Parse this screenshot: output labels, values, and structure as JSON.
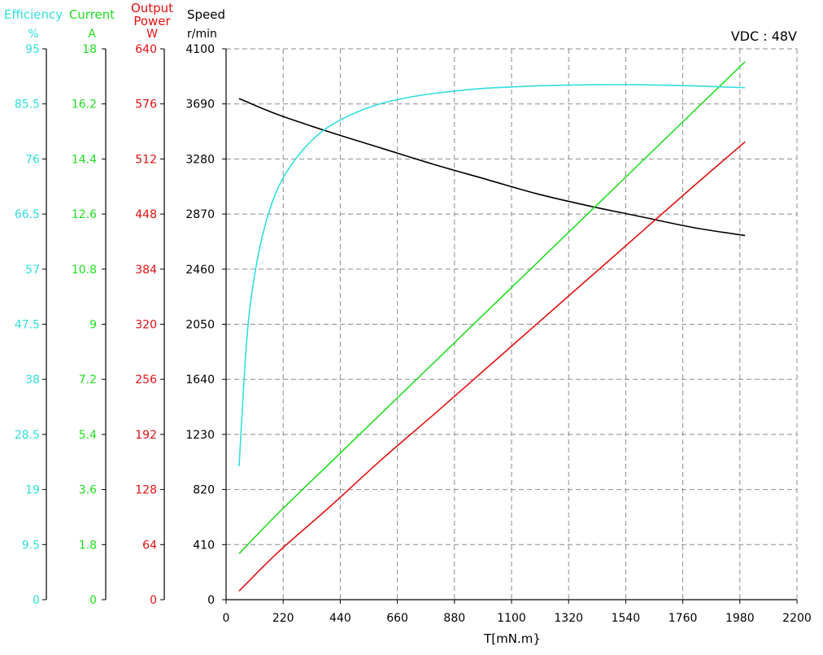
{
  "chart_data": {
    "type": "line",
    "x_axis": {
      "label": "T[mN.m}",
      "range": [
        0,
        2200
      ],
      "ticks": [
        0,
        220,
        440,
        660,
        880,
        1100,
        1320,
        1540,
        1760,
        1980,
        2200
      ]
    },
    "annotation": "VDC : 48V",
    "axes": [
      {
        "key": "speed",
        "title": "Speed",
        "unit": "r/min",
        "color": "#000000",
        "range": [
          0,
          4100
        ],
        "ticks": [
          "0",
          "410",
          "820",
          "1230",
          "1640",
          "2050",
          "2460",
          "2870",
          "3280",
          "3690",
          "4100"
        ]
      },
      {
        "key": "output_power",
        "title": "Output Power",
        "unit": "W",
        "color": "#e01010",
        "range": [
          0,
          640
        ],
        "ticks": [
          "0",
          "64",
          "128",
          "192",
          "256",
          "320",
          "384",
          "448",
          "512",
          "576",
          "640"
        ]
      },
      {
        "key": "current",
        "title": "Current",
        "unit": "A",
        "color": "#22dd22",
        "range": [
          0,
          18
        ],
        "ticks": [
          "0",
          "1.8",
          "3.6",
          "5.4",
          "7.2",
          "9",
          "10.8",
          "12.6",
          "14.4",
          "16.2",
          "18"
        ]
      },
      {
        "key": "efficiency",
        "title": "Efficiency",
        "unit": "%",
        "color": "#33dddd",
        "range": [
          0,
          95
        ],
        "ticks": [
          "0",
          "9.5",
          "19",
          "28.5",
          "38",
          "47.5",
          "57",
          "66.5",
          "76",
          "85.5",
          "95"
        ]
      }
    ],
    "series": [
      {
        "axis": "speed",
        "color": "#000000",
        "x": [
          50,
          200,
          400,
          600,
          800,
          1000,
          1200,
          1400,
          1600,
          1800,
          2000
        ],
        "y": [
          3730,
          3610,
          3480,
          3360,
          3240,
          3130,
          3020,
          2930,
          2850,
          2770,
          2710
        ]
      },
      {
        "axis": "output_power",
        "color": "#e01010",
        "x": [
          50,
          200,
          400,
          600,
          800,
          1000,
          1200,
          1400,
          1600,
          1800,
          2000
        ],
        "y": [
          10,
          55,
          108,
          163,
          215,
          268,
          321,
          374,
          427,
          480,
          532
        ]
      },
      {
        "axis": "current",
        "color": "#22dd22",
        "x": [
          50,
          200,
          400,
          600,
          800,
          1000,
          1200,
          1400,
          1600,
          1800,
          2000
        ],
        "y": [
          1.5,
          2.82,
          4.46,
          6.1,
          7.74,
          9.38,
          11.02,
          12.66,
          14.3,
          15.94,
          17.58
        ]
      },
      {
        "axis": "efficiency",
        "color": "#33dddd",
        "x": [
          50,
          80,
          110,
          150,
          200,
          260,
          330,
          400,
          500,
          600,
          700,
          800,
          900,
          1000,
          1200,
          1400,
          1600,
          1800,
          2000
        ],
        "y": [
          23,
          45,
          56,
          64.5,
          71,
          75.5,
          79.2,
          81.7,
          84,
          85.6,
          86.6,
          87.3,
          87.8,
          88.2,
          88.6,
          88.8,
          88.8,
          88.6,
          88.3
        ]
      }
    ]
  }
}
